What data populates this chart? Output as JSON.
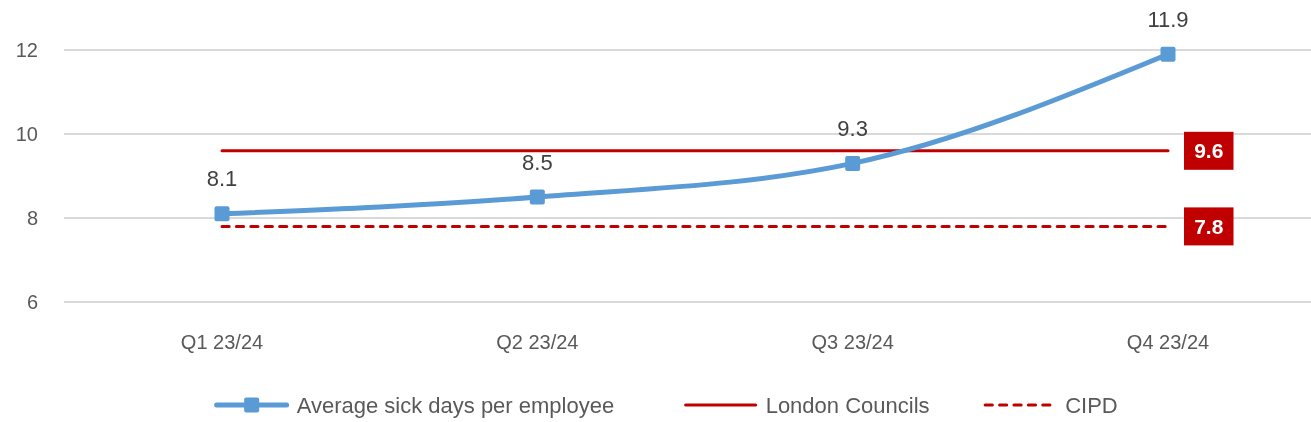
{
  "chart_data": {
    "type": "line",
    "categories": [
      "Q1 23/24",
      "Q2 23/24",
      "Q3 23/24",
      "Q4 23/24"
    ],
    "series": [
      {
        "name": "Average sick days per employee",
        "color": "#5b9bd5",
        "values": [
          8.1,
          8.5,
          9.3,
          11.9
        ],
        "marker": "square",
        "line_style": "solid",
        "value_labels": [
          "8.1",
          "8.5",
          "9.3",
          "11.9"
        ]
      },
      {
        "name": "London Councils",
        "color": "#c00000",
        "values": [
          9.6,
          9.6,
          9.6,
          9.6
        ],
        "marker": "none",
        "line_style": "solid",
        "value_labels": [
          null,
          null,
          null,
          "9.6"
        ]
      },
      {
        "name": "CIPD",
        "color": "#c00000",
        "values": [
          7.8,
          7.8,
          7.8,
          7.8
        ],
        "marker": "none",
        "line_style": "dashed",
        "value_labels": [
          null,
          null,
          null,
          "7.8"
        ]
      }
    ],
    "ylim": [
      6,
      12
    ],
    "yticks": [
      6,
      8,
      10,
      12
    ],
    "grid": "y",
    "legend": "bottom"
  }
}
